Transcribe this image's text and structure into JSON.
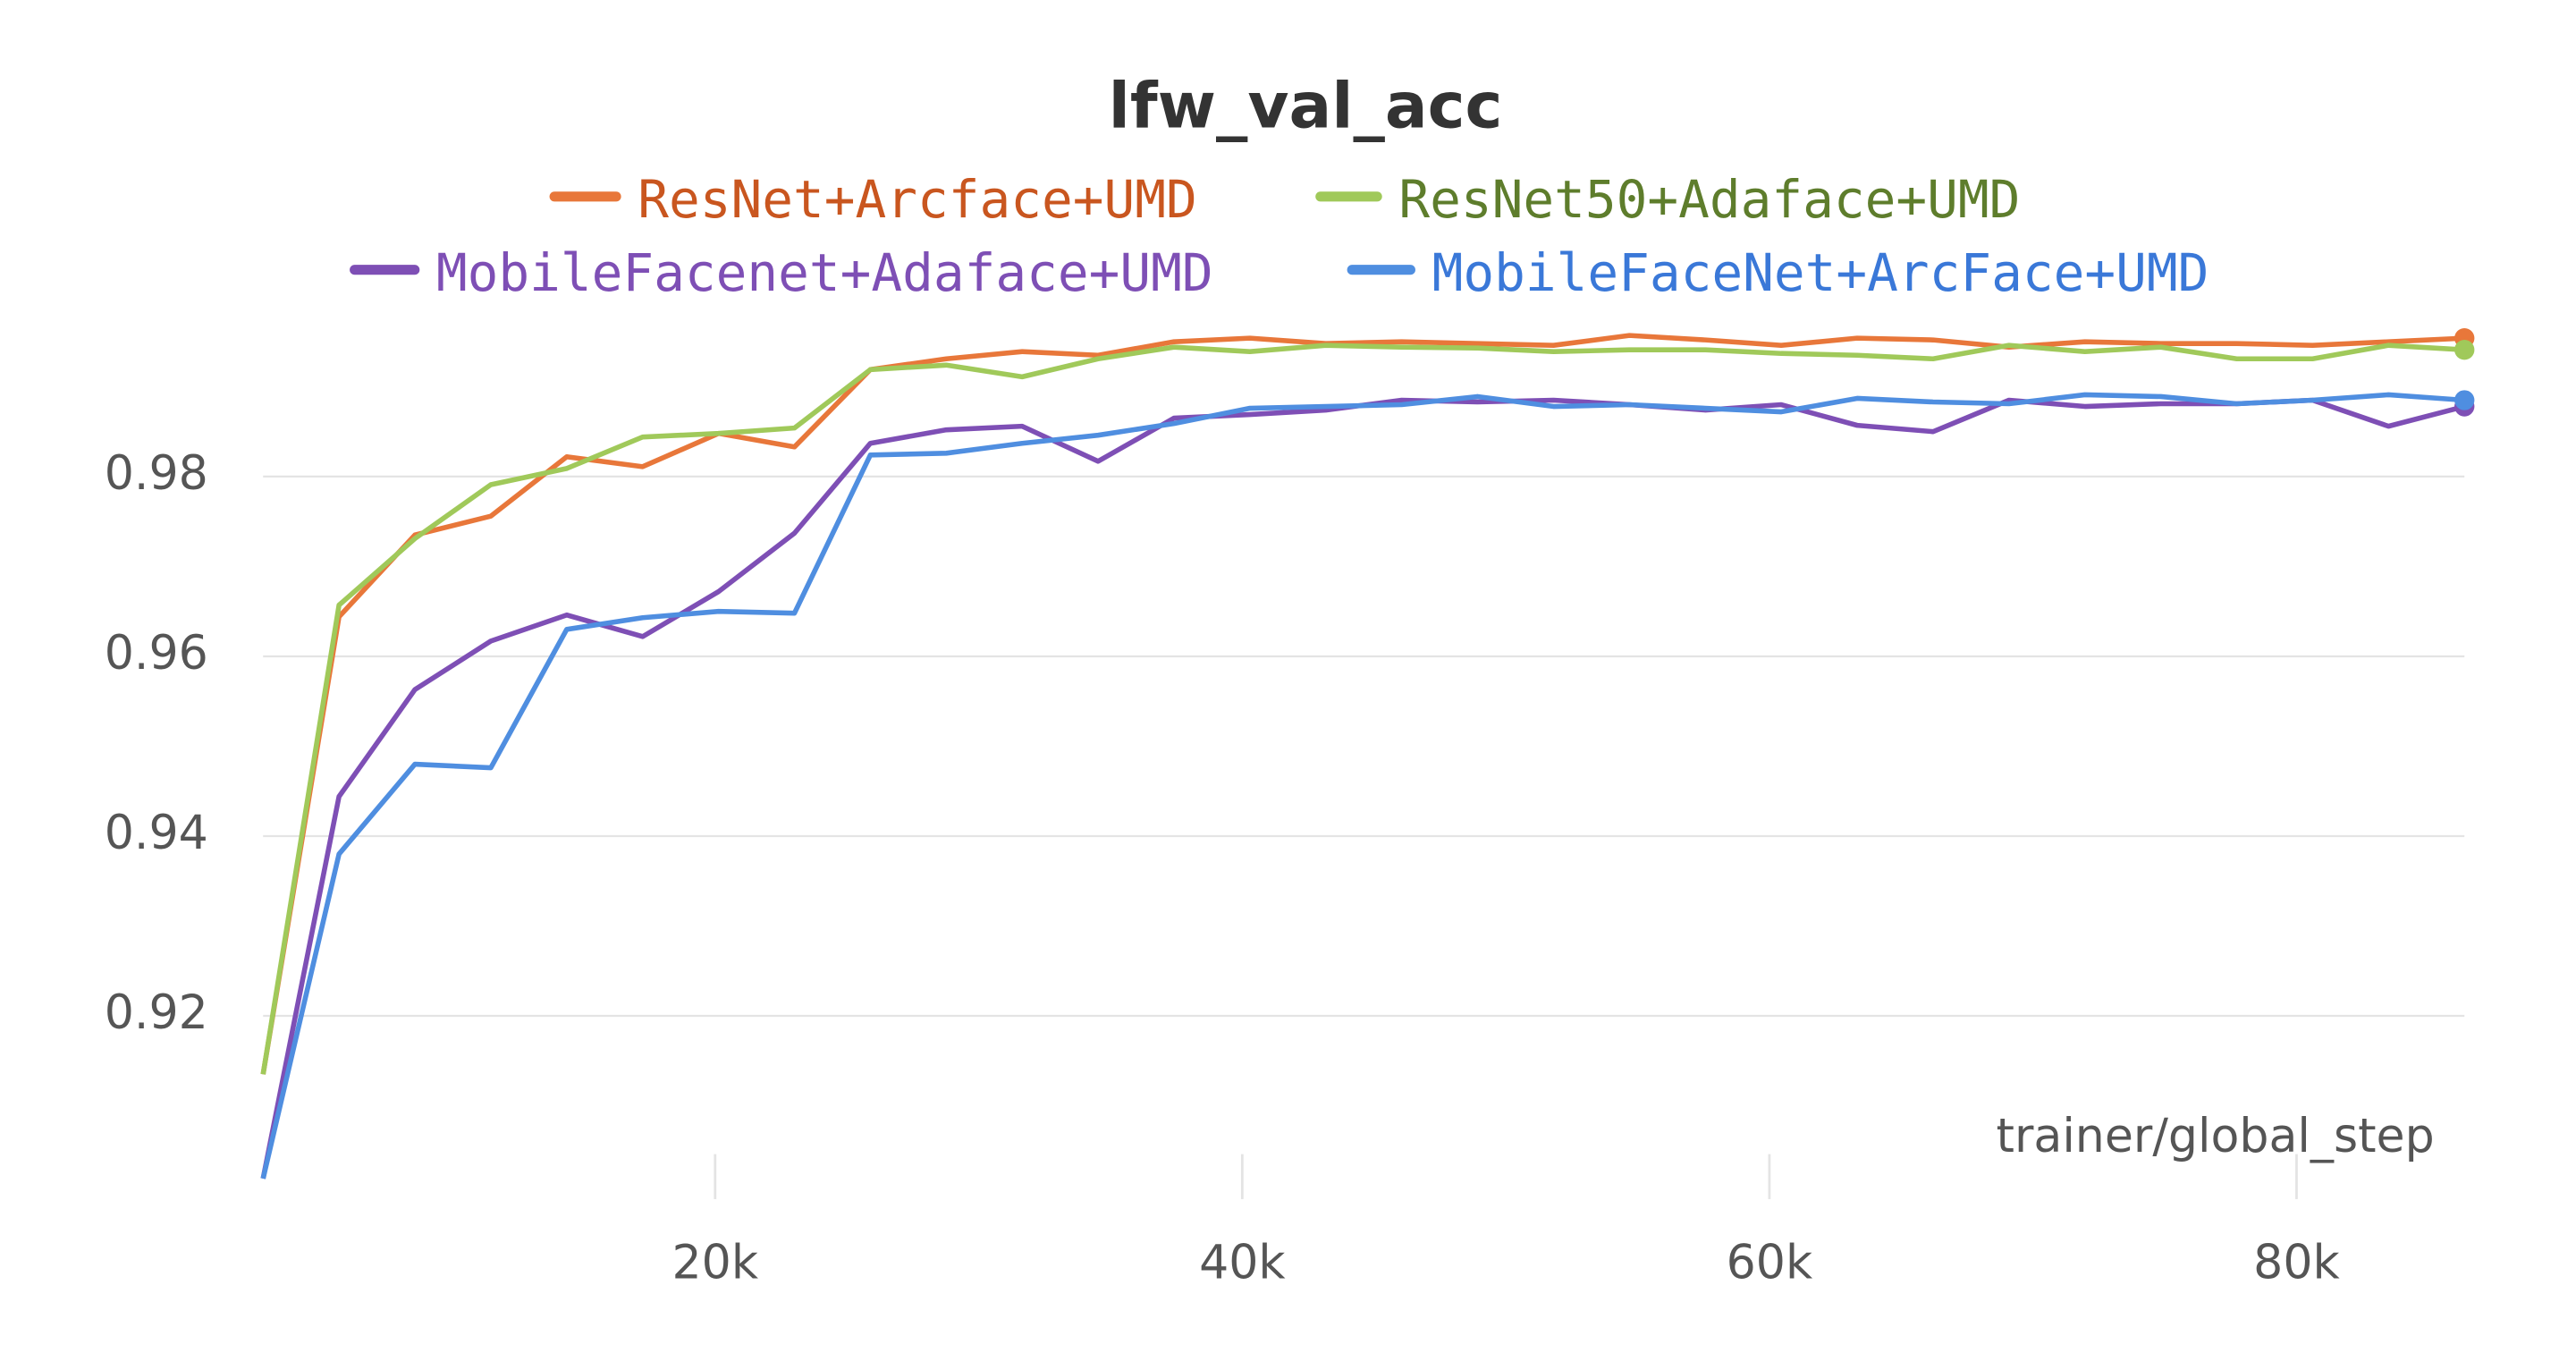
{
  "chart_data": {
    "type": "line",
    "title": "lfw_val_acc",
    "x_label": "trainer/global_step",
    "x": [
      2850,
      5730,
      8610,
      11490,
      14370,
      17250,
      20130,
      23010,
      25890,
      28770,
      31650,
      34530,
      37410,
      40290,
      43170,
      46050,
      48930,
      51810,
      54690,
      57570,
      60450,
      63330,
      66210,
      69090,
      71970,
      74850,
      77730,
      80610,
      83490,
      86370
    ],
    "series": [
      {
        "name": "ResNet+Arcface+UMD",
        "color": "#e8773a",
        "text_color": "#c9561f",
        "values": [
          0.9135,
          0.9644,
          0.9735,
          0.9756,
          0.9822,
          0.9811,
          0.9848,
          0.9833,
          0.9919,
          0.9931,
          0.9939,
          0.9935,
          0.995,
          0.9954,
          0.9948,
          0.995,
          0.9948,
          0.9946,
          0.9957,
          0.9952,
          0.9946,
          0.9954,
          0.9952,
          0.9944,
          0.995,
          0.9948,
          0.9948,
          0.9946,
          0.995,
          0.9954
        ]
      },
      {
        "name": "ResNet50+Adaface+UMD",
        "color": "#a0c95a",
        "text_color": "#5e7d2c",
        "values": [
          0.9135,
          0.9657,
          0.9731,
          0.9791,
          0.9809,
          0.9844,
          0.9848,
          0.9854,
          0.9919,
          0.9924,
          0.9911,
          0.9931,
          0.9944,
          0.9939,
          0.9946,
          0.9944,
          0.9943,
          0.9939,
          0.9941,
          0.9941,
          0.9937,
          0.9935,
          0.9931,
          0.9946,
          0.9939,
          0.9944,
          0.9931,
          0.9931,
          0.9946,
          0.9941
        ]
      },
      {
        "name": "MobileFacenet+Adaface+UMD",
        "color": "#7e4fb5",
        "text_color": "#7e4fb5",
        "values": [
          0.9019,
          0.9444,
          0.9563,
          0.9617,
          0.9646,
          0.9622,
          0.9672,
          0.9737,
          0.9837,
          0.9852,
          0.9856,
          0.9817,
          0.9865,
          0.9869,
          0.9874,
          0.9885,
          0.9883,
          0.9885,
          0.988,
          0.9874,
          0.988,
          0.9857,
          0.985,
          0.9885,
          0.9878,
          0.9881,
          0.9881,
          0.9885,
          0.9856,
          0.9878
        ]
      },
      {
        "name": "MobileFaceNet+ArcFace+UMD",
        "color": "#4f8ee0",
        "text_color": "#3a78d8",
        "values": [
          0.9019,
          0.938,
          0.948,
          0.9476,
          0.963,
          0.9643,
          0.965,
          0.9648,
          0.9824,
          0.9826,
          0.9837,
          0.9846,
          0.9859,
          0.9876,
          0.9878,
          0.988,
          0.9889,
          0.9878,
          0.988,
          0.9876,
          0.9872,
          0.9887,
          0.9883,
          0.9881,
          0.9891,
          0.9889,
          0.9881,
          0.9885,
          0.9891,
          0.9885
        ]
      }
    ],
    "xlim": [
      2850,
      86370
    ],
    "ylim": [
      0.8998,
      0.998
    ],
    "xticks": [
      {
        "value": 20000,
        "label": "20k"
      },
      {
        "value": 40000,
        "label": "40k"
      },
      {
        "value": 60000,
        "label": "60k"
      },
      {
        "value": 80000,
        "label": "80k"
      }
    ],
    "yticks": [
      0.92,
      0.94,
      0.96,
      0.98
    ],
    "grid": true
  }
}
